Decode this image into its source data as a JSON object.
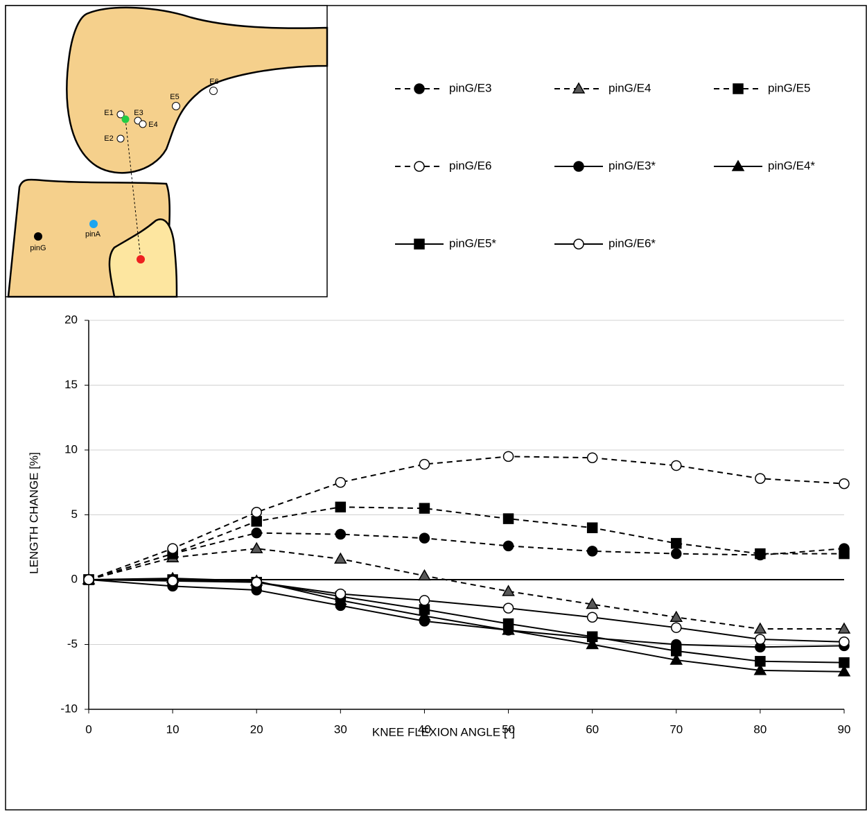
{
  "chart_data": {
    "type": "line",
    "x_label": "KNEE FLEXION ANGLE [°]",
    "y_label": "LENGTH CHANGE [%]",
    "x": [
      0,
      10,
      20,
      30,
      40,
      50,
      60,
      70,
      80,
      90
    ],
    "xlim": [
      0,
      90
    ],
    "xticks": [
      0,
      10,
      20,
      30,
      40,
      50,
      60,
      70,
      80,
      90
    ],
    "ylim": [
      -10,
      20
    ],
    "yticks": [
      -10,
      -5,
      0,
      5,
      10,
      15,
      20
    ],
    "grid": true,
    "series": [
      {
        "name": "pinG/E3",
        "color": "#000000",
        "marker": "circle",
        "marker_fill": "#000000",
        "line_style": "dashed",
        "values": [
          0,
          2.0,
          3.6,
          3.5,
          3.2,
          2.6,
          2.2,
          2.0,
          1.9,
          2.4
        ]
      },
      {
        "name": "pinG/E4",
        "color": "#000000",
        "marker": "triangle",
        "marker_fill": "#595959",
        "line_style": "dashed",
        "values": [
          0,
          1.7,
          2.4,
          1.6,
          0.3,
          -0.9,
          -1.9,
          -2.9,
          -3.8,
          -3.8
        ]
      },
      {
        "name": "pinG/E5",
        "color": "#000000",
        "marker": "square",
        "marker_fill": "#000000",
        "line_style": "dashed",
        "values": [
          0,
          2.0,
          4.5,
          5.6,
          5.5,
          4.7,
          4.0,
          2.8,
          2.0,
          2.0
        ]
      },
      {
        "name": "pinG/E6",
        "color": "#000000",
        "marker": "circle",
        "marker_fill": "#ffffff",
        "line_style": "dashed",
        "values": [
          0,
          2.4,
          5.2,
          7.5,
          8.9,
          9.5,
          9.4,
          8.8,
          7.8,
          7.4
        ]
      },
      {
        "name": "pinG/E3*",
        "color": "#000000",
        "marker": "circle",
        "marker_fill": "#000000",
        "line_style": "solid",
        "values": [
          0,
          -0.5,
          -0.8,
          -2.0,
          -3.2,
          -3.9,
          -4.5,
          -5.0,
          -5.2,
          -5.1
        ]
      },
      {
        "name": "pinG/E4*",
        "color": "#000000",
        "marker": "triangle",
        "marker_fill": "#000000",
        "line_style": "solid",
        "values": [
          0,
          0.1,
          -0.1,
          -1.6,
          -2.8,
          -3.9,
          -5.0,
          -6.2,
          -7.0,
          -7.1
        ]
      },
      {
        "name": "pinG/E5*",
        "color": "#000000",
        "marker": "square",
        "marker_fill": "#000000",
        "line_style": "solid",
        "values": [
          0,
          0,
          -0.2,
          -1.3,
          -2.3,
          -3.4,
          -4.4,
          -5.5,
          -6.3,
          -6.4
        ]
      },
      {
        "name": "pinG/E6*",
        "color": "#000000",
        "marker": "circle",
        "marker_fill": "#ffffff",
        "line_style": "solid",
        "values": [
          0,
          -0.1,
          -0.2,
          -1.1,
          -1.6,
          -2.2,
          -2.9,
          -3.7,
          -4.6,
          -4.8
        ]
      }
    ]
  },
  "inset": {
    "labels": [
      "E1",
      "E2",
      "E3",
      "E4",
      "E5",
      "E6",
      "pinG",
      "pinA"
    ]
  }
}
